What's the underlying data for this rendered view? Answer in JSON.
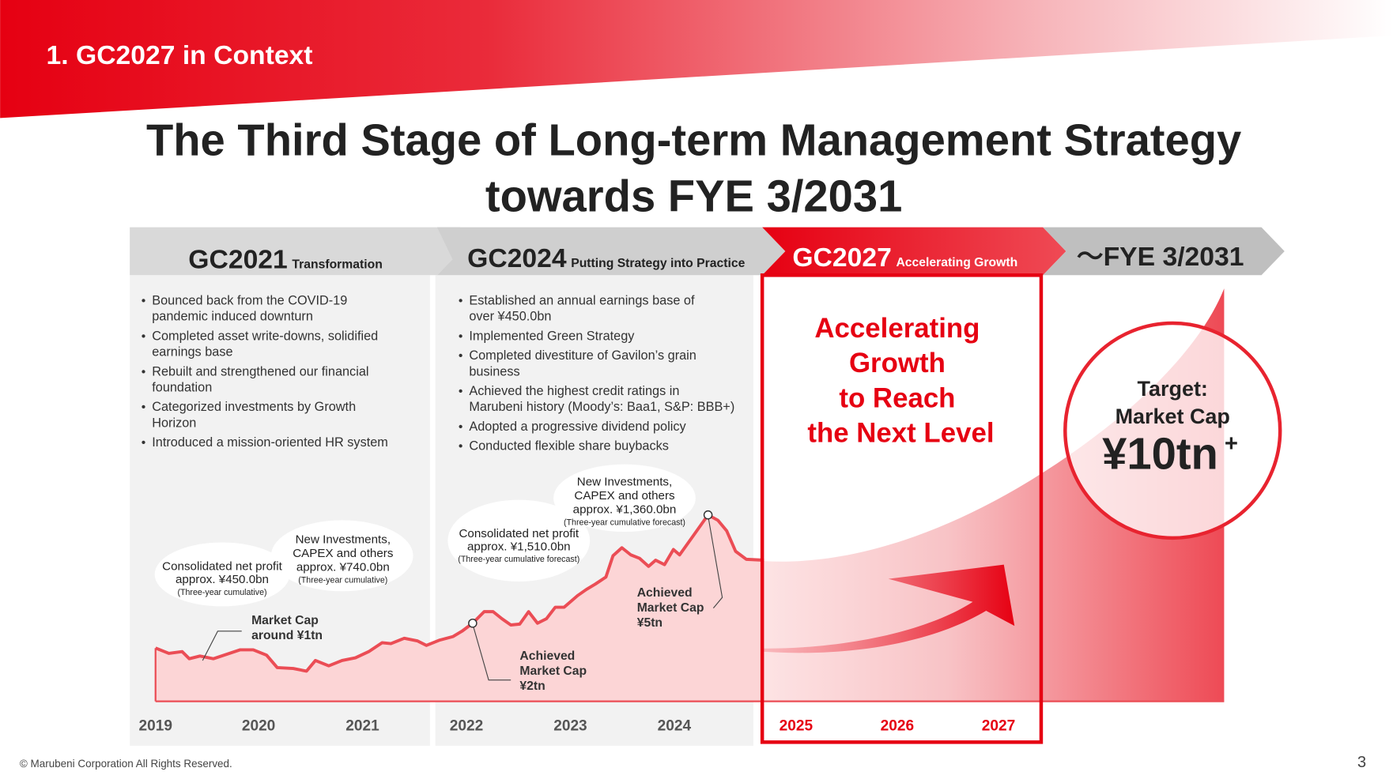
{
  "section_title": "1.   GC2027 in Context",
  "title_line1": "The Third Stage of Long-term Management Strategy",
  "title_line2": "towards FYE 3/2031",
  "stages": [
    {
      "name": "GC2021",
      "subtitle": "Transformation",
      "bullets": [
        [
          "Bounced back from the COVID-19",
          "pandemic induced downturn"
        ],
        [
          "Completed asset write-downs, solidified",
          "earnings base"
        ],
        [
          "Rebuilt and strengthened our financial",
          "foundation"
        ],
        [
          "Categorized investments by Growth",
          "Horizon"
        ],
        [
          "Introduced a mission-oriented HR system"
        ]
      ]
    },
    {
      "name": "GC2024",
      "subtitle": "Putting Strategy into Practice",
      "bullets": [
        [
          "Established an annual earnings base of",
          "over ¥450.0bn"
        ],
        [
          "Implemented Green Strategy"
        ],
        [
          "Completed divestiture of Gavilon’s grain",
          "business"
        ],
        [
          "Achieved the highest credit ratings in",
          "Marubeni history (Moody’s: Baa1, S&P: BBB+)"
        ],
        [
          "Adopted a progressive dividend policy"
        ],
        [
          "Conducted flexible share buybacks"
        ]
      ]
    },
    {
      "name": "GC2027",
      "subtitle": "Accelerating Growth",
      "headline": [
        "Accelerating",
        "Growth",
        "to Reach",
        "the Next Level"
      ]
    },
    {
      "name": "～FYE 3/2031"
    }
  ],
  "target": {
    "line1": "Target:",
    "line2": "Market Cap",
    "value": "¥10tn",
    "plus": "+"
  },
  "bubbles": {
    "gc2021_profit": [
      "Consolidated net profit",
      "approx. ¥450.0bn",
      "(Three-year cumulative)"
    ],
    "gc2021_invest": [
      "New Investments,",
      "CAPEX and others",
      "approx. ¥740.0bn",
      "(Three-year cumulative)"
    ],
    "gc2024_profit": [
      "Consolidated net profit",
      "approx. ¥1,510.0bn",
      "(Three-year cumulative forecast)"
    ],
    "gc2024_invest": [
      "New Investments,",
      "CAPEX and others",
      "approx. ¥1,360.0bn",
      "(Three-year cumulative forecast)"
    ]
  },
  "annotations": {
    "cap1": [
      "Market Cap",
      "around ¥1tn"
    ],
    "cap2": [
      "Achieved",
      "Market Cap",
      "¥2tn"
    ],
    "cap5": [
      "Achieved",
      "Market Cap",
      "¥5tn"
    ]
  },
  "years": [
    "2019",
    "2020",
    "2021",
    "2022",
    "2023",
    "2024",
    "2025",
    "2026",
    "2027"
  ],
  "footer": "© Marubeni Corporation All Rights Reserved.",
  "page_number": "3",
  "colors": {
    "brand_red": "#e60012",
    "panel_gray": "#f2f2f2",
    "header_gray": "#d9d9d9"
  }
}
